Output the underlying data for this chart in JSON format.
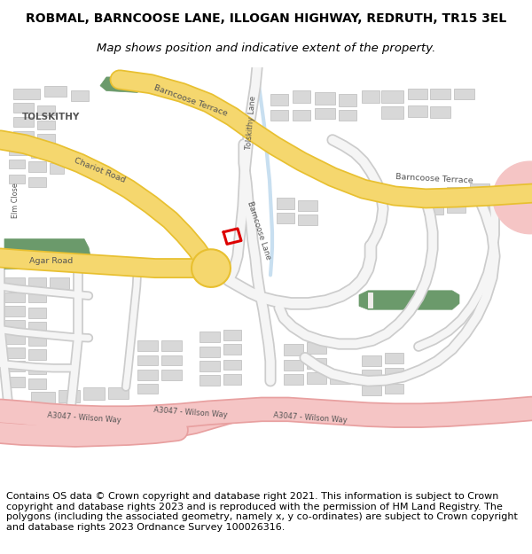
{
  "title_line1": "ROBMAL, BARNCOOSE LANE, ILLOGAN HIGHWAY, REDRUTH, TR15 3EL",
  "title_line2": "Map shows position and indicative extent of the property.",
  "copyright_text": "Contains OS data © Crown copyright and database right 2021. This information is subject to Crown copyright and database rights 2023 and is reproduced with the permission of HM Land Registry. The polygons (including the associated geometry, namely x, y co-ordinates) are subject to Crown copyright and database rights 2023 Ordnance Survey 100026316.",
  "map_bg": "#f0eeeb",
  "road_yellow_fill": "#f5d76e",
  "road_yellow_border": "#e8c030",
  "road_pink_fill": "#f5c5c5",
  "road_pink_border": "#e8a0a0",
  "road_gray_fill": "#e8e8e8",
  "road_gray_border": "#cccccc",
  "road_blue_fill": "#d0e8f0",
  "building_fill": "#d8d8d8",
  "building_edge": "#bbbbbb",
  "green_fill": "#6b9a6b",
  "property_red": "#dd0000",
  "text_road": "#555555",
  "text_place": "#333333",
  "title_fontsize": 10,
  "subtitle_fontsize": 9.5,
  "copyright_fontsize": 8.0
}
